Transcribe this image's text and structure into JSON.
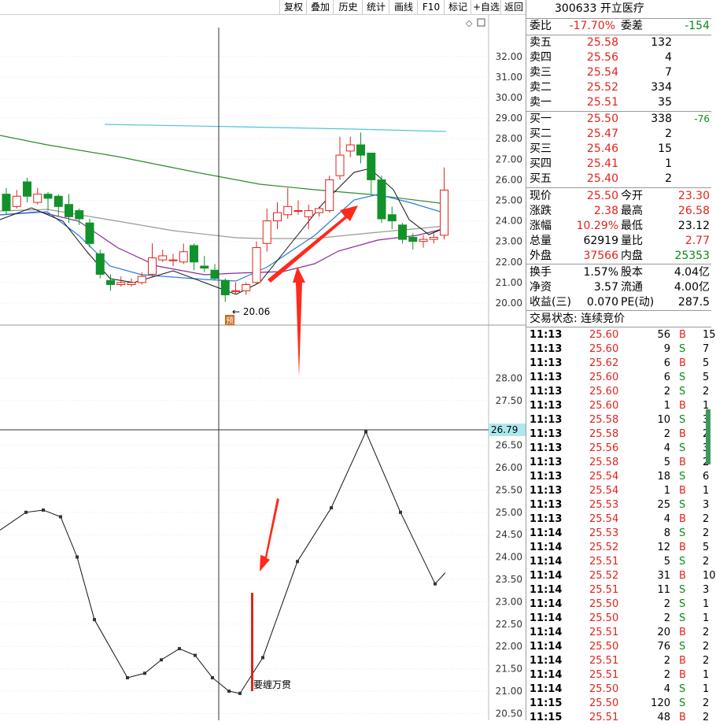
{
  "toolbar": {
    "buttons": [
      "复权",
      "叠加",
      "历史",
      "统计",
      "画线",
      "F10",
      "标记",
      "+自选",
      "返回"
    ]
  },
  "chart": {
    "main_ticks": [
      "32.00",
      "31.00",
      "30.00",
      "29.00",
      "28.00",
      "27.00",
      "26.00",
      "25.00",
      "24.00",
      "23.00",
      "22.00",
      "21.00",
      "20.00"
    ],
    "lower_ticks": [
      "28.00",
      "27.50",
      "26.50",
      "26.00",
      "25.50",
      "25.00",
      "24.50",
      "24.00",
      "23.50",
      "23.00",
      "22.50",
      "22.00",
      "21.50",
      "21.00",
      "20.50"
    ],
    "low_label": "20.06",
    "low_marker": "预",
    "crosshair_value": "26.79",
    "signal_label": "要缠万贯"
  },
  "quote": {
    "code_name": "300633 开立医疗",
    "weibi_label": "委比",
    "weibi": "-17.70%",
    "weicha_label": "委差",
    "weicha": "-154",
    "asks": [
      {
        "label": "卖五",
        "price": "25.58",
        "vol": "132"
      },
      {
        "label": "卖四",
        "price": "25.56",
        "vol": "4"
      },
      {
        "label": "卖三",
        "price": "25.54",
        "vol": "7"
      },
      {
        "label": "卖二",
        "price": "25.52",
        "vol": "334"
      },
      {
        "label": "卖一",
        "price": "25.51",
        "vol": "35"
      }
    ],
    "bids": [
      {
        "label": "买一",
        "price": "25.50",
        "vol": "338",
        "chg": "-76"
      },
      {
        "label": "买二",
        "price": "25.47",
        "vol": "2",
        "chg": ""
      },
      {
        "label": "买三",
        "price": "25.46",
        "vol": "15",
        "chg": ""
      },
      {
        "label": "买四",
        "price": "25.41",
        "vol": "1",
        "chg": ""
      },
      {
        "label": "买五",
        "price": "25.40",
        "vol": "2",
        "chg": ""
      }
    ],
    "stats": [
      {
        "l1": "现价",
        "v1": "25.50",
        "l2": "今开",
        "v2": "23.30",
        "c1": "red",
        "c2": "red"
      },
      {
        "l1": "涨跌",
        "v1": "2.38",
        "l2": "最高",
        "v2": "26.58",
        "c1": "red",
        "c2": "red"
      },
      {
        "l1": "涨幅",
        "v1": "10.29%",
        "l2": "最低",
        "v2": "23.12",
        "c1": "red",
        "c2": "black"
      },
      {
        "l1": "总量",
        "v1": "62919",
        "l2": "量比",
        "v2": "2.77",
        "c1": "black",
        "c2": "red"
      },
      {
        "l1": "外盘",
        "v1": "37566",
        "l2": "内盘",
        "v2": "25353",
        "c1": "red",
        "c2": "green"
      }
    ],
    "stats2": [
      {
        "l1": "换手",
        "v1": "1.57%",
        "l2": "股本",
        "v2": "4.04亿"
      },
      {
        "l1": "净资",
        "v1": "3.57",
        "l2": "流通",
        "v2": "4.00亿"
      },
      {
        "l1": "收益(三)",
        "v1": "0.070",
        "l2": "PE(动)",
        "v2": "287.5"
      }
    ],
    "status": "交易状态: 连续竞价"
  },
  "ticks": [
    {
      "t": "11:13",
      "p": "25.60",
      "v": "56",
      "d": "B",
      "n": "15"
    },
    {
      "t": "11:13",
      "p": "25.60",
      "v": "9",
      "d": "S",
      "n": "7"
    },
    {
      "t": "11:13",
      "p": "25.62",
      "v": "6",
      "d": "B",
      "n": "5"
    },
    {
      "t": "11:13",
      "p": "25.60",
      "v": "6",
      "d": "S",
      "n": "5"
    },
    {
      "t": "11:13",
      "p": "25.60",
      "v": "2",
      "d": "S",
      "n": "2"
    },
    {
      "t": "11:13",
      "p": "25.60",
      "v": "1",
      "d": "B",
      "n": "1"
    },
    {
      "t": "11:13",
      "p": "25.58",
      "v": "10",
      "d": "S",
      "n": "3"
    },
    {
      "t": "11:13",
      "p": "25.58",
      "v": "2",
      "d": "B",
      "n": "2"
    },
    {
      "t": "11:13",
      "p": "25.56",
      "v": "4",
      "d": "S",
      "n": "3"
    },
    {
      "t": "11:13",
      "p": "25.58",
      "v": "5",
      "d": "B",
      "n": "2"
    },
    {
      "t": "11:13",
      "p": "25.54",
      "v": "18",
      "d": "S",
      "n": "6"
    },
    {
      "t": "11:13",
      "p": "25.54",
      "v": "1",
      "d": "B",
      "n": "1"
    },
    {
      "t": "11:13",
      "p": "25.53",
      "v": "25",
      "d": "S",
      "n": "3"
    },
    {
      "t": "11:13",
      "p": "25.54",
      "v": "4",
      "d": "B",
      "n": "2"
    },
    {
      "t": "11:14",
      "p": "25.53",
      "v": "8",
      "d": "S",
      "n": "2"
    },
    {
      "t": "11:14",
      "p": "25.52",
      "v": "12",
      "d": "B",
      "n": "5"
    },
    {
      "t": "11:14",
      "p": "25.51",
      "v": "5",
      "d": "S",
      "n": "2"
    },
    {
      "t": "11:14",
      "p": "25.52",
      "v": "31",
      "d": "B",
      "n": "10"
    },
    {
      "t": "11:14",
      "p": "25.51",
      "v": "11",
      "d": "S",
      "n": "3"
    },
    {
      "t": "11:14",
      "p": "25.50",
      "v": "2",
      "d": "S",
      "n": "1"
    },
    {
      "t": "11:14",
      "p": "25.50",
      "v": "2",
      "d": "S",
      "n": "1"
    },
    {
      "t": "11:14",
      "p": "25.51",
      "v": "20",
      "d": "B",
      "n": "2"
    },
    {
      "t": "11:14",
      "p": "25.50",
      "v": "76",
      "d": "S",
      "n": "2"
    },
    {
      "t": "11:14",
      "p": "25.51",
      "v": "2",
      "d": "B",
      "n": "2"
    },
    {
      "t": "11:14",
      "p": "25.51",
      "v": "2",
      "d": "B",
      "n": "1"
    },
    {
      "t": "11:14",
      "p": "25.50",
      "v": "4",
      "d": "S",
      "n": "1"
    },
    {
      "t": "11:15",
      "p": "25.50",
      "v": "120",
      "d": "S",
      "n": "2"
    },
    {
      "t": "11:15",
      "p": "25.51",
      "v": "48",
      "d": "B",
      "n": "2"
    }
  ],
  "chart_data": [
    {
      "type": "candlestick",
      "ticks_y": [
        20,
        21,
        22,
        23,
        24,
        25,
        26,
        27,
        28,
        29,
        30,
        31,
        32
      ],
      "low_annotation": 20.06,
      "candles": [
        [
          25.3,
          24.5,
          25.6,
          24.3
        ],
        [
          24.7,
          25.2,
          25.5,
          24.6
        ],
        [
          25.9,
          25.2,
          26.1,
          24.9
        ],
        [
          24.9,
          25.3,
          25.6,
          24.8
        ],
        [
          25.3,
          25.1,
          25.4,
          24.5
        ],
        [
          25.2,
          24.7,
          25.3,
          24.2
        ],
        [
          24.8,
          24.2,
          25.3,
          23.9
        ],
        [
          24.5,
          24.1,
          24.6,
          23.8
        ],
        [
          23.9,
          22.9,
          24.1,
          22.7
        ],
        [
          22.4,
          21.4,
          22.6,
          21.2
        ],
        [
          21.1,
          20.9,
          21.4,
          20.6
        ],
        [
          20.9,
          21.0,
          21.3,
          20.8
        ],
        [
          20.9,
          21.0,
          21.2,
          20.8
        ],
        [
          21.0,
          21.3,
          21.5,
          20.9
        ],
        [
          21.4,
          22.2,
          22.9,
          21.3
        ],
        [
          22.1,
          22.3,
          22.6,
          22.0
        ],
        [
          22.1,
          22.1,
          22.4,
          21.8
        ],
        [
          22.0,
          22.5,
          22.9,
          21.9
        ],
        [
          22.8,
          22.0,
          22.9,
          21.6
        ],
        [
          21.8,
          21.7,
          22.3,
          21.5
        ],
        [
          21.6,
          21.2,
          21.9,
          21.1
        ],
        [
          21.1,
          20.4,
          21.2,
          20.06
        ],
        [
          20.6,
          20.6,
          21.0,
          20.4
        ],
        [
          20.6,
          20.9,
          21.0,
          20.4
        ],
        [
          21.0,
          22.7,
          23.0,
          20.9
        ],
        [
          22.9,
          24.0,
          24.6,
          22.5
        ],
        [
          24.0,
          24.4,
          24.9,
          23.6
        ],
        [
          24.3,
          24.7,
          25.6,
          24.1
        ],
        [
          24.5,
          24.5,
          25.0,
          24.3
        ],
        [
          24.2,
          24.5,
          24.8,
          23.6
        ],
        [
          24.4,
          24.6,
          24.7,
          24.2
        ],
        [
          24.5,
          26.0,
          26.2,
          24.4
        ],
        [
          26.2,
          27.2,
          28.1,
          26.0
        ],
        [
          27.4,
          27.7,
          28.1,
          27.1
        ],
        [
          27.7,
          27.2,
          28.3,
          26.8
        ],
        [
          27.3,
          26.0,
          27.3,
          25.3
        ],
        [
          26.0,
          24.1,
          26.2,
          23.9
        ],
        [
          24.3,
          24.0,
          24.7,
          23.6
        ],
        [
          23.8,
          23.1,
          23.9,
          22.9
        ],
        [
          23.2,
          23.0,
          23.4,
          22.6
        ],
        [
          23.0,
          23.1,
          23.3,
          22.7
        ],
        [
          23.1,
          23.2,
          23.4,
          22.9
        ],
        [
          23.3,
          25.5,
          26.6,
          23.1
        ]
      ],
      "ma_lines": [
        "MA5 black",
        "MA10 blue",
        "MA20 purple",
        "MA30 gray",
        "MA60 green",
        "MA120 cyan"
      ]
    },
    {
      "type": "line",
      "ticks_y": [
        20.5,
        21.0,
        21.5,
        22.0,
        22.5,
        23.0,
        23.5,
        24.0,
        24.5,
        25.0,
        25.5,
        26.0,
        26.5,
        27.5,
        28.0
      ],
      "y": [
        24.6,
        25.0,
        24.95,
        23.9,
        22.5,
        21.35,
        21.3,
        21.7,
        21.9,
        21.8,
        21.0,
        20.95,
        21.5,
        22.1,
        23.9,
        24.8,
        25.6,
        26.8,
        26.2,
        25.0,
        23.6,
        23.4,
        23.65
      ],
      "signal_bar": [
        21.0,
        23.2
      ]
    }
  ]
}
